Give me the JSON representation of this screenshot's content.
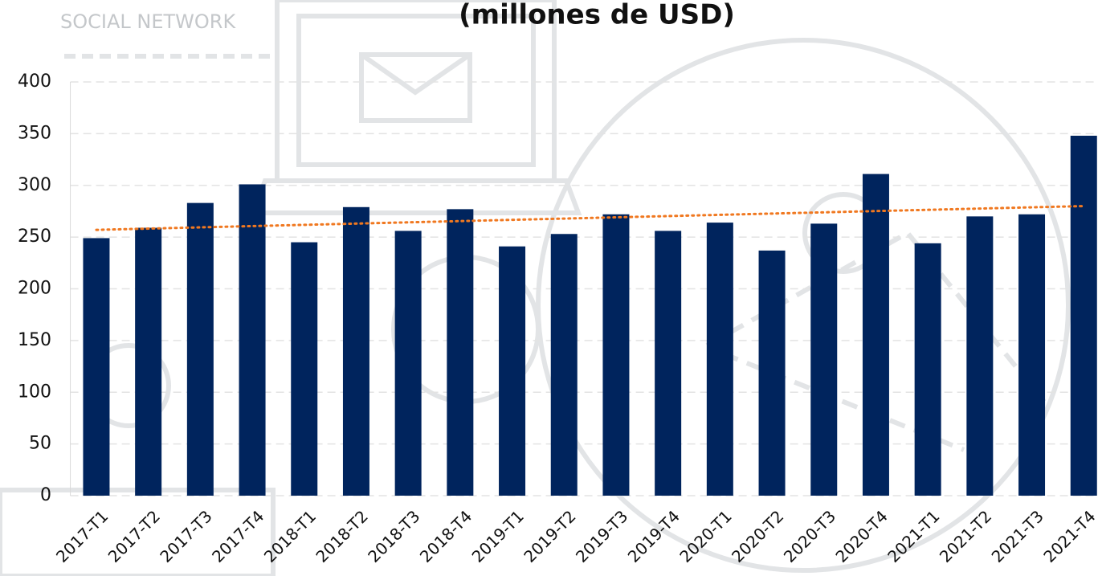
{
  "chart_data": {
    "type": "bar",
    "title": "(millones de USD)",
    "background_text": "SOCIAL NETWORK",
    "categories": [
      "2017-T1",
      "2017-T2",
      "2017-T3",
      "2017-T4",
      "2018-T1",
      "2018-T2",
      "2018-T3",
      "2018-T4",
      "2019-T1",
      "2019-T2",
      "2019-T3",
      "2019-T4",
      "2020-T1",
      "2020-T2",
      "2020-T3",
      "2020-T4",
      "2021-T1",
      "2021-T2",
      "2021-T3",
      "2021-T4"
    ],
    "values": [
      249,
      259,
      283,
      301,
      245,
      279,
      256,
      277,
      241,
      253,
      272,
      256,
      264,
      237,
      263,
      311,
      244,
      270,
      272,
      348
    ],
    "color": "#00245d",
    "trendline": {
      "color": "#f07820",
      "start": 257,
      "end": 280
    },
    "ylim": [
      0,
      400
    ],
    "yticks": [
      0,
      50,
      100,
      150,
      200,
      250,
      300,
      350,
      400
    ],
    "grid": true
  }
}
